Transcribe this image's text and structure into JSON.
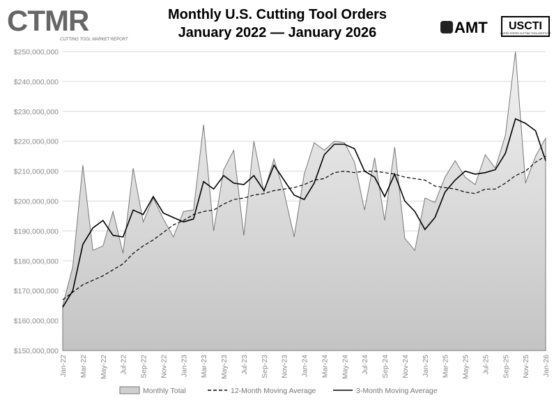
{
  "chart_data": {
    "type": "line",
    "title": "Monthly U.S. Cutting Tool Orders",
    "subtitle": "January 2022 — January 2026",
    "logos": {
      "left": "CTMR",
      "left_caption": "CUTTING TOOL MARKET REPORT",
      "right": "AMT",
      "right_second": "USCTI",
      "right_caption": "UNITED STATES CUTTING TOOL INSTITUTE"
    },
    "categories": [
      "Jan-22",
      null,
      "Mar-22",
      null,
      "May-22",
      null,
      "Jul-22",
      null,
      "Sep-22",
      null,
      "Nov-22",
      null,
      "Jan-23",
      null,
      "Mar-23",
      null,
      "May-23",
      null,
      "Jul-23",
      null,
      "Sep-23",
      null,
      "Nov-23",
      null,
      "Jan-24",
      null,
      "Mar-24",
      null,
      "May-24",
      null,
      "Jul-24",
      null,
      "Sep-24",
      null,
      "Nov-24",
      null,
      "Jan-25",
      null,
      "Mar-25",
      null,
      "May-25",
      null,
      "Jul-25",
      null,
      "Sep-25",
      null,
      "Nov-25",
      null,
      "Jan-26"
    ],
    "series": [
      {
        "name": "Monthly Total",
        "color": "#777777",
        "style": "area",
        "values": [
          165000000,
          178000000,
          212000000,
          183500000,
          185000000,
          196500000,
          182500000,
          211000000,
          193000000,
          201000000,
          194000000,
          188000000,
          196500000,
          197000000,
          225500000,
          190000000,
          210500000,
          217000000,
          188500000,
          220000000,
          203000000,
          214000000,
          203000000,
          188000000,
          209000000,
          219500000,
          217000000,
          220000000,
          219500000,
          213000000,
          197000000,
          214500000,
          193500000,
          218000000,
          187500000,
          183500000,
          201000000,
          199500000,
          208000000,
          213500000,
          208000000,
          205500000,
          215500000,
          211000000,
          222000000,
          250000000,
          206000000,
          215000000,
          221000000
        ]
      },
      {
        "name": "12-Month Moving Average",
        "color": "#000000",
        "style": "dashed",
        "values": [
          167000000,
          169500000,
          172000000,
          173500000,
          175000000,
          177000000,
          179000000,
          182500000,
          185000000,
          187000000,
          189500000,
          192000000,
          193500000,
          195500000,
          196500000,
          197000000,
          199000000,
          200500000,
          201000000,
          202000000,
          202500000,
          203500000,
          204000000,
          204500000,
          205500000,
          207000000,
          207500000,
          209500000,
          210000000,
          209500000,
          210000000,
          210000000,
          209500000,
          209000000,
          208000000,
          207500000,
          207000000,
          205000000,
          204500000,
          204000000,
          203000000,
          202500000,
          204000000,
          204000000,
          206000000,
          208500000,
          210000000,
          213000000,
          215000000
        ]
      },
      {
        "name": "3-Month Moving Average",
        "color": "#000000",
        "style": "solid",
        "values": [
          164500000,
          170000000,
          185500000,
          191000000,
          193500000,
          188500000,
          188000000,
          197000000,
          195500000,
          201500000,
          196000000,
          194500000,
          193000000,
          194000000,
          206500000,
          204000000,
          208500000,
          206000000,
          205500000,
          208500000,
          203500000,
          212000000,
          207000000,
          202000000,
          200500000,
          206000000,
          215500000,
          219000000,
          219000000,
          217500000,
          210000000,
          208000000,
          201500000,
          209000000,
          200000000,
          196500000,
          190500000,
          194500000,
          203000000,
          207000000,
          210000000,
          209000000,
          209500000,
          210500000,
          216000000,
          227500000,
          226000000,
          223500000,
          213500000
        ]
      }
    ],
    "ylim": [
      150000000,
      250000000
    ],
    "yticks": [
      {
        "value": 150000000,
        "label": "$150,000,000"
      },
      {
        "value": 160000000,
        "label": "$160,000,000"
      },
      {
        "value": 170000000,
        "label": "$170,000,000"
      },
      {
        "value": 180000000,
        "label": "$180,000,000"
      },
      {
        "value": 190000000,
        "label": "$190,000,000"
      },
      {
        "value": 200000000,
        "label": "$200,000,000"
      },
      {
        "value": 210000000,
        "label": "$210,000,000"
      },
      {
        "value": 220000000,
        "label": "$220,000,000"
      },
      {
        "value": 230000000,
        "label": "$230,000,000"
      },
      {
        "value": 240000000,
        "label": "$240,000,000"
      },
      {
        "value": 250000000,
        "label": "$250,000,000"
      }
    ],
    "grid": true,
    "legend": "bottom"
  }
}
